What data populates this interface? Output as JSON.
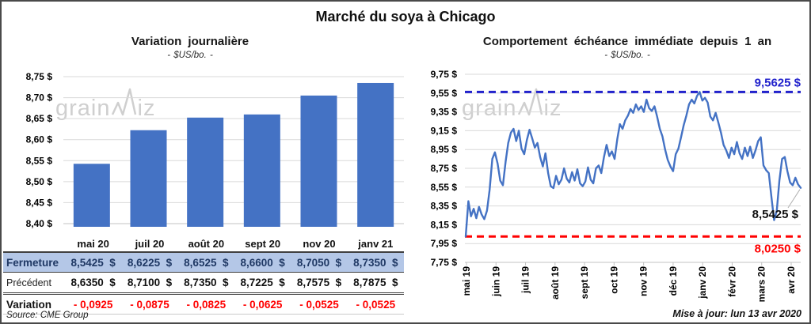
{
  "main_title": "Marché du soya à Chicago",
  "brand": {
    "part1": "grain",
    "part2": "iz"
  },
  "chart_data": [
    {
      "type": "bar",
      "title": "Variation journalière",
      "subtitle": "- $US/bo. -",
      "categories": [
        "mai 20",
        "juil 20",
        "août 20",
        "sept 20",
        "nov 20",
        "janv 21"
      ],
      "values": [
        8.5425,
        8.6225,
        8.6525,
        8.66,
        8.705,
        8.735
      ],
      "ylim": [
        8.4,
        8.75
      ],
      "ytick_labels": [
        "8,75 $",
        "8,70 $",
        "8,65 $",
        "8,60 $",
        "8,55 $",
        "8,50 $",
        "8,45 $",
        "8,40 $"
      ],
      "bar_color": "#4472C4",
      "grid": "horizontal",
      "legend": "none"
    },
    {
      "type": "line",
      "title": "Comportement échéance immédiate depuis 1 an",
      "subtitle": "- $US/bo. -",
      "x_labels": [
        "mai 19",
        "juin 19",
        "juil 19",
        "août 19",
        "sept 19",
        "oct 19",
        "nov 19",
        "déc 19",
        "janv 20",
        "févr 20",
        "mars 20",
        "avr 20"
      ],
      "ylim": [
        7.75,
        9.75
      ],
      "ytick_labels": [
        "9,75 $",
        "9,55 $",
        "9,35 $",
        "9,15 $",
        "8,95 $",
        "8,75 $",
        "8,55 $",
        "8,35 $",
        "8,15 $",
        "7,95 $",
        "7,75 $"
      ],
      "series": [
        {
          "name": "échéance immédiate",
          "color": "#4472C4",
          "values": [
            8.025,
            8.4,
            8.24,
            8.32,
            8.22,
            8.34,
            8.26,
            8.21,
            8.3,
            8.52,
            8.85,
            8.92,
            8.8,
            8.62,
            8.57,
            8.82,
            9.02,
            9.13,
            9.17,
            9.04,
            9.15,
            8.96,
            8.9,
            9.05,
            9.16,
            9.07,
            8.97,
            9.02,
            8.87,
            8.77,
            8.91,
            8.7,
            8.56,
            8.54,
            8.67,
            8.58,
            8.63,
            8.75,
            8.64,
            8.6,
            8.71,
            8.62,
            8.74,
            8.59,
            8.56,
            8.61,
            8.76,
            8.63,
            8.59,
            8.75,
            8.78,
            8.7,
            8.87,
            9.0,
            8.88,
            8.93,
            8.85,
            9.06,
            9.22,
            9.17,
            9.26,
            9.31,
            9.38,
            9.34,
            9.43,
            9.37,
            9.41,
            9.35,
            9.48,
            9.39,
            9.36,
            9.41,
            9.3,
            9.17,
            9.09,
            8.95,
            8.84,
            8.77,
            8.72,
            8.9,
            8.96,
            9.08,
            9.21,
            9.31,
            9.43,
            9.48,
            9.44,
            9.52,
            9.5625,
            9.47,
            9.5,
            9.45,
            9.3,
            9.26,
            9.34,
            9.24,
            9.13,
            9.0,
            8.94,
            8.86,
            8.97,
            8.9,
            9.03,
            8.91,
            8.85,
            8.97,
            8.88,
            8.98,
            8.86,
            8.94,
            9.04,
            9.08,
            8.78,
            8.73,
            8.7,
            8.44,
            8.2,
            8.3,
            8.62,
            8.85,
            8.87,
            8.72,
            8.6,
            8.57,
            8.65,
            8.58,
            8.5425
          ]
        }
      ],
      "max_line": {
        "value": 9.5625,
        "label": "9,5625 $",
        "color": "#2222CC"
      },
      "min_line": {
        "value": 8.025,
        "label": "8,0250 $",
        "color": "#FF0000"
      },
      "last_point": {
        "value": 8.5425,
        "label": "8,5425 $"
      },
      "grid": "horizontal",
      "legend": "none"
    }
  ],
  "table": {
    "columns": [
      "mai 20",
      "juil 20",
      "août 20",
      "sept 20",
      "nov 20",
      "janv 21"
    ],
    "rows": [
      {
        "label": "Fermeture",
        "values": [
          "8,5425  $",
          "8,6225  $",
          "8,6525  $",
          "8,6600  $",
          "8,7050  $",
          "8,7350  $"
        ]
      },
      {
        "label": "Précédent",
        "values": [
          "8,6350  $",
          "8,7100  $",
          "8,7350  $",
          "8,7225  $",
          "8,7575  $",
          "8,7875  $"
        ]
      },
      {
        "label": "Variation",
        "values": [
          "- 0,0925",
          "- 0,0875",
          "- 0,0825",
          "- 0,0625",
          "- 0,0525",
          "- 0,0525"
        ]
      }
    ]
  },
  "footer": {
    "source": "Source: CME Group",
    "updated": "Mise à jour: lun 13 avr 2020"
  }
}
